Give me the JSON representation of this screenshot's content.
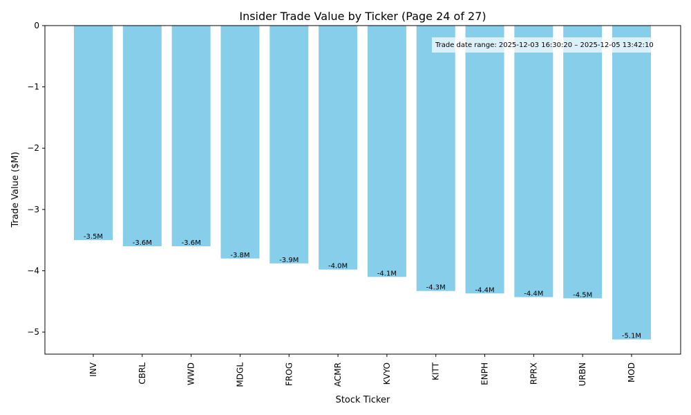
{
  "chart_data": {
    "type": "bar",
    "title": "Insider Trade Value by Ticker (Page 24 of 27)",
    "xlabel": "Stock Ticker",
    "ylabel": "Trade Value ($M)",
    "categories": [
      "INV",
      "CBRL",
      "WWD",
      "MDGL",
      "FROG",
      "ACMR",
      "KVYO",
      "KITT",
      "ENPH",
      "RPRX",
      "URBN",
      "MOD"
    ],
    "values": [
      -3.5,
      -3.6,
      -3.6,
      -3.8,
      -3.88,
      -3.98,
      -4.1,
      -4.33,
      -4.37,
      -4.43,
      -4.45,
      -5.12
    ],
    "data_labels": [
      "-3.5M",
      "-3.6M",
      "-3.6M",
      "-3.8M",
      "-3.9M",
      "-4.0M",
      "-4.1M",
      "-4.3M",
      "-4.4M",
      "-4.4M",
      "-4.5M",
      "-5.1M"
    ],
    "ylim": [
      -5.36,
      0
    ],
    "yticks": [
      0,
      -1,
      -2,
      -3,
      -4,
      -5
    ],
    "ytick_labels": [
      "0",
      "−1",
      "−2",
      "−3",
      "−4",
      "−5"
    ],
    "bar_color": "#87ceeb",
    "grid": false,
    "annotation": "Trade date range: 2025-12-03 16:30:20 – 2025-12-05 13:42:10"
  }
}
